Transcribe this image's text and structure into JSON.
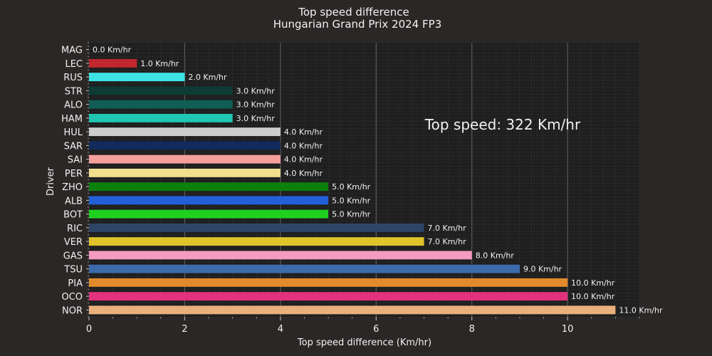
{
  "chart_data": {
    "type": "bar",
    "orientation": "horizontal",
    "title": "Top speed difference",
    "subtitle": "Hungarian Grand Prix 2024 FP3",
    "xlabel": "Top speed difference (Km/hr)",
    "ylabel": "Driver",
    "xlim": [
      0,
      11.5
    ],
    "xticks": [
      "0",
      "2",
      "4",
      "6",
      "8",
      "10"
    ],
    "grid": true,
    "value_suffix": " Km/hr",
    "annotation": "Top speed: 322 Km/hr",
    "categories": [
      "MAG",
      "LEC",
      "RUS",
      "STR",
      "ALO",
      "HAM",
      "HUL",
      "SAR",
      "SAI",
      "PER",
      "ZHO",
      "ALB",
      "BOT",
      "RIC",
      "VER",
      "GAS",
      "TSU",
      "PIA",
      "OCO",
      "NOR"
    ],
    "values": [
      0.0,
      1.0,
      2.0,
      3.0,
      3.0,
      3.0,
      4.0,
      4.0,
      4.0,
      4.0,
      5.0,
      5.0,
      5.0,
      7.0,
      7.0,
      8.0,
      9.0,
      10.0,
      10.0,
      11.0
    ],
    "colors": [
      "#b6babd",
      "#c2262e",
      "#3ee4e4",
      "#0d3b36",
      "#105e56",
      "#1fc7b2",
      "#cdcdcd",
      "#102b5c",
      "#f59f9d",
      "#f0df8c",
      "#0d7f0d",
      "#2160d6",
      "#20d020",
      "#2d4566",
      "#e0c42a",
      "#f59ac0",
      "#3c6bab",
      "#e28b2c",
      "#e2327d",
      "#e9b07b"
    ],
    "value_labels": [
      "0.0 Km/hr",
      "1.0 Km/hr",
      "2.0 Km/hr",
      "3.0 Km/hr",
      "3.0 Km/hr",
      "3.0 Km/hr",
      "4.0 Km/hr",
      "4.0 Km/hr",
      "4.0 Km/hr",
      "4.0 Km/hr",
      "5.0 Km/hr",
      "5.0 Km/hr",
      "5.0 Km/hr",
      "7.0 Km/hr",
      "7.0 Km/hr",
      "8.0 Km/hr",
      "9.0 Km/hr",
      "10.0 Km/hr",
      "10.0 Km/hr",
      "11.0 Km/hr"
    ]
  },
  "theme": {
    "background": "#2b2726",
    "plot_background": "#1f1f1f",
    "text": "#f2f2f2",
    "major_grid": "#5a5a5a",
    "minor_grid": "#3a3a3a"
  }
}
